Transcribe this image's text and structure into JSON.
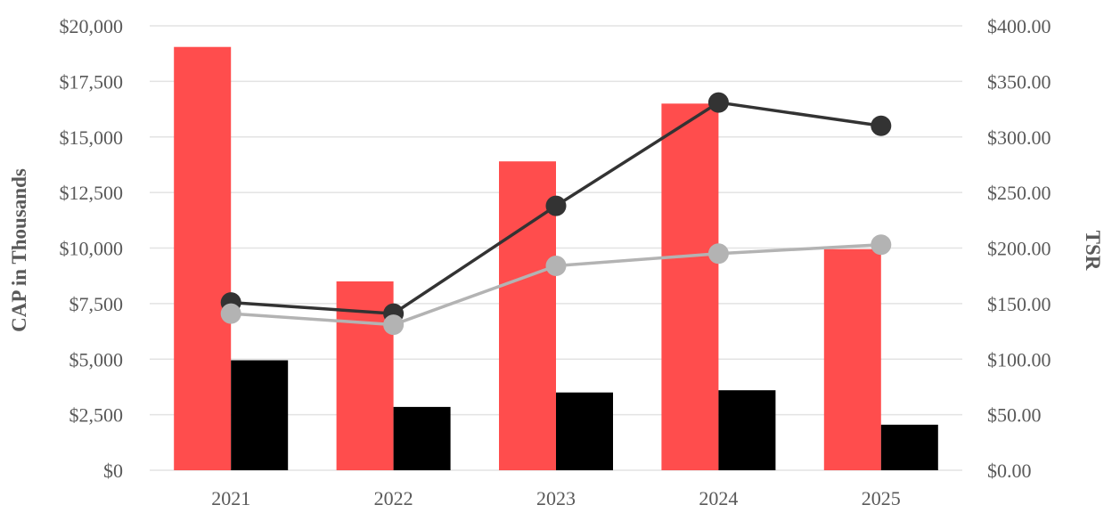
{
  "chart_data": {
    "type": "bar",
    "categories": [
      "2021",
      "2022",
      "2023",
      "2024",
      "2025"
    ],
    "series": [
      {
        "kind": "bar",
        "axis": "left",
        "color": "#ff4d4d",
        "values": [
          19050,
          8500,
          13900,
          16500,
          9950
        ]
      },
      {
        "kind": "bar",
        "axis": "left",
        "color": "#000000",
        "values": [
          4950,
          2850,
          3500,
          3600,
          2050
        ]
      },
      {
        "kind": "line",
        "axis": "right",
        "color": "#333333",
        "values": [
          151,
          141,
          238,
          331,
          310
        ]
      },
      {
        "kind": "line",
        "axis": "right",
        "color": "#b3b3b3",
        "values": [
          141,
          131,
          184,
          195,
          203
        ]
      }
    ],
    "ylabel": "CAP in Thousands",
    "y2label": "TSR",
    "ylim": [
      0,
      20000
    ],
    "y2lim": [
      0,
      400
    ],
    "yticks": [
      "$0",
      "$2,500",
      "$5,000",
      "$7,500",
      "$10,000",
      "$12,500",
      "$15,000",
      "$17,500",
      "$20,000"
    ],
    "y2ticks": [
      "$0.00",
      "$50.00",
      "$100.00",
      "$150.00",
      "$200.00",
      "$250.00",
      "$300.00",
      "$350.00",
      "$400.00"
    ],
    "grid": true
  }
}
